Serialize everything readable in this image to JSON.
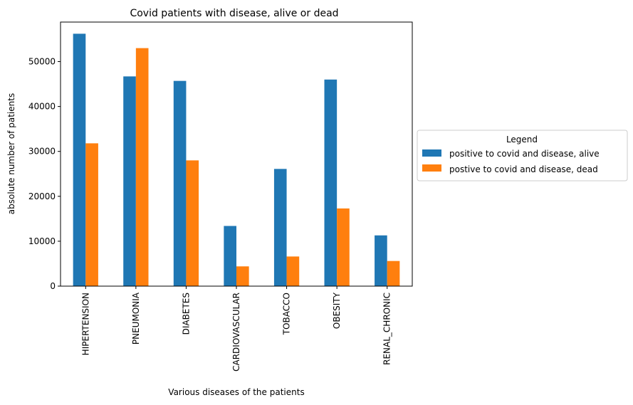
{
  "chart_data": {
    "type": "bar",
    "title": "Covid patients with disease, alive or dead",
    "xlabel": "Various diseases of the patients",
    "ylabel": "absolute number of patients",
    "categories": [
      "HIPERTENSION",
      "PNEUMONIA",
      "DIABETES",
      "CARDIOVASCULAR",
      "TOBACCO",
      "OBESITY",
      "RENAL_CHRONIC"
    ],
    "series": [
      {
        "name": "positive to covid and disease, alive",
        "values": [
          56200,
          46700,
          45700,
          13400,
          26100,
          46000,
          11300
        ],
        "color": "#1f77b4"
      },
      {
        "name": "postive to covid and disease, dead",
        "values": [
          31800,
          53000,
          28000,
          4400,
          6600,
          17300,
          5600
        ],
        "color": "#ff7f0e"
      }
    ],
    "ylim": [
      0,
      58800
    ],
    "yticks": [
      0,
      10000,
      20000,
      30000,
      40000,
      50000
    ],
    "grid": false,
    "legend": {
      "title": "Legend",
      "placement": "center-right outside"
    }
  }
}
